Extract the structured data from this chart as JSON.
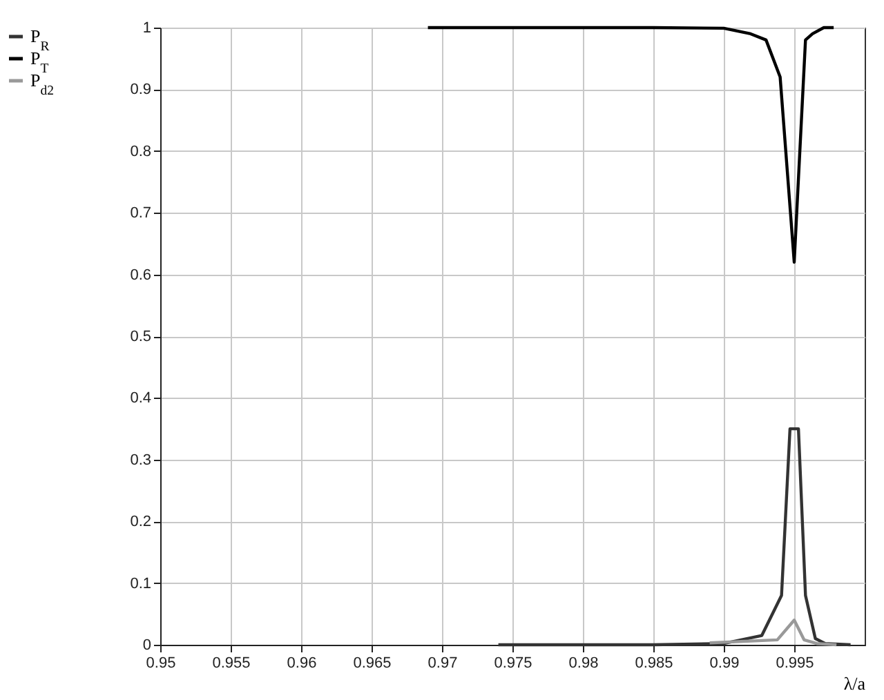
{
  "chart_data": {
    "type": "line",
    "xlabel": "λ/a",
    "xlim": [
      0.95,
      1.0
    ],
    "xticks": [
      0.95,
      0.955,
      0.96,
      0.965,
      0.97,
      0.975,
      0.98,
      0.985,
      0.99,
      0.995
    ],
    "ylim": [
      0,
      1
    ],
    "yticks": [
      0,
      0.1,
      0.2,
      0.3,
      0.4,
      0.5,
      0.6,
      0.7,
      0.8,
      0.9,
      1
    ],
    "grid": true,
    "legend": "left",
    "line_style": "solid",
    "marker": "none",
    "series": [
      {
        "name": "P$_{R}$",
        "color": "#333333",
        "x": [
          0.974,
          0.985,
          0.99,
          0.9927,
          0.9941,
          0.9947,
          0.9953,
          0.9958,
          0.9965,
          0.9972,
          0.999
        ],
        "values": [
          0,
          0,
          0.002,
          0.015,
          0.08,
          0.35,
          0.35,
          0.08,
          0.01,
          0.002,
          0
        ]
      },
      {
        "name": "P$_{T}$",
        "color": "#000000",
        "x": [
          0.969,
          0.985,
          0.99,
          0.9919,
          0.993,
          0.994,
          0.995,
          0.9958,
          0.9963,
          0.9971,
          0.9978
        ],
        "values": [
          1,
          1,
          0.999,
          0.99,
          0.98,
          0.92,
          0.62,
          0.98,
          0.99,
          1,
          1
        ]
      },
      {
        "name": "P$_{d2}$",
        "color": "#999999",
        "x": [
          0.989,
          0.9938,
          0.995,
          0.9957,
          0.9966,
          0.998
        ],
        "values": [
          0.003,
          0.008,
          0.04,
          0.008,
          0.002,
          0
        ]
      }
    ]
  }
}
